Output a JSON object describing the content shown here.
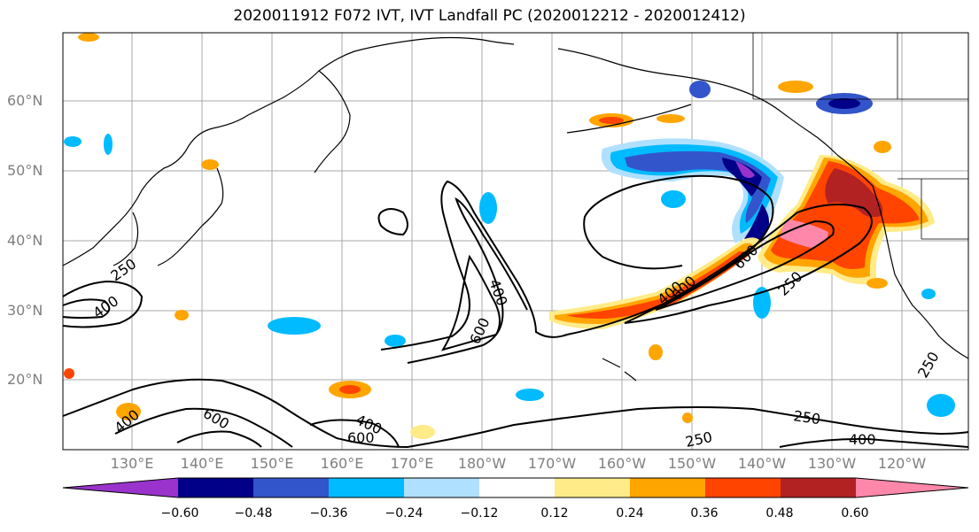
{
  "title": "2020011912 F072 IVT, IVT Landfall PC (2020012212 - 2020012412)",
  "lat_labels": [
    "60°N",
    "50°N",
    "40°N",
    "30°N",
    "20°N"
  ],
  "lon_labels": [
    "130°E",
    "140°E",
    "150°E",
    "160°E",
    "170°E",
    "180°W",
    "170°W",
    "160°W",
    "150°W",
    "140°W",
    "130°W",
    "120°W"
  ],
  "colorbar": {
    "ticks": [
      "−0.60",
      "−0.48",
      "−0.36",
      "−0.24",
      "−0.12",
      "0.12",
      "0.24",
      "0.36",
      "0.48",
      "0.60"
    ],
    "colors": [
      "#9933cc",
      "#000088",
      "#3355cc",
      "#00bbff",
      "#b0e0ff",
      "#ffffff",
      "#ffeb88",
      "#ffa500",
      "#ff4400",
      "#b22222",
      "#ff88aa"
    ]
  },
  "contour_labels": [
    "250",
    "400",
    "600",
    "400",
    "600",
    "400",
    "600",
    "400",
    "600",
    "250",
    "600",
    "400",
    "250",
    "250",
    "400",
    "250"
  ],
  "colors": {
    "grid": "#a9a9a9",
    "coast": "#000000",
    "contour": "#000000"
  }
}
